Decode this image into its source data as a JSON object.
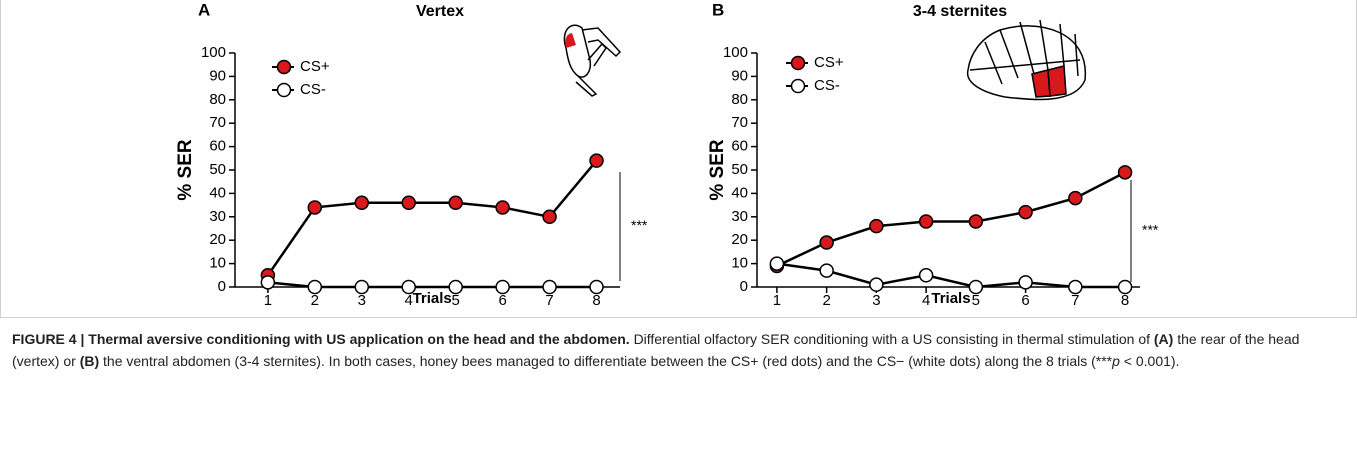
{
  "chart_data": [
    {
      "type": "line",
      "panel": "A",
      "title": "Vertex",
      "ylabel": "% SER",
      "xlabel": "Trials",
      "annotation": "***",
      "x": [
        1,
        2,
        3,
        4,
        5,
        6,
        7,
        8
      ],
      "xlim": [
        0.3,
        8.5
      ],
      "xticks": [
        1,
        2,
        3,
        4,
        5,
        6,
        7,
        8
      ],
      "ylim": [
        0,
        100
      ],
      "yticks": [
        0,
        10,
        20,
        30,
        40,
        50,
        60,
        70,
        80,
        90,
        100
      ],
      "legend": "upper left",
      "series": [
        {
          "name": "CS+",
          "color": "#d7191c",
          "values": [
            5,
            34,
            36,
            36,
            36,
            34,
            30,
            54
          ]
        },
        {
          "name": "CS-",
          "color": "#ffffff",
          "values": [
            2,
            0,
            0,
            0,
            0,
            0,
            0,
            0
          ]
        }
      ]
    },
    {
      "type": "line",
      "panel": "B",
      "title": "3-4 sternites",
      "ylabel": "% SER",
      "xlabel": "Trials",
      "annotation": "***",
      "x": [
        1,
        2,
        3,
        4,
        5,
        6,
        7,
        8
      ],
      "xlim": [
        0.6,
        8.3
      ],
      "xticks": [
        1,
        2,
        3,
        4,
        5,
        6,
        7,
        8
      ],
      "ylim": [
        0,
        100
      ],
      "yticks": [
        0,
        10,
        20,
        30,
        40,
        50,
        60,
        70,
        80,
        90,
        100
      ],
      "legend": "upper left",
      "series": [
        {
          "name": "CS+",
          "color": "#d7191c",
          "values": [
            9,
            19,
            26,
            28,
            28,
            32,
            38,
            49
          ]
        },
        {
          "name": "CS-",
          "color": "#ffffff",
          "values": [
            10,
            7,
            1,
            5,
            0,
            2,
            0,
            0
          ]
        }
      ]
    }
  ],
  "caption": {
    "title": "FIGURE 4 | Thermal aversive conditioning with US application on the head and the abdomen.",
    "body": [
      "Differential olfactory SER conditioning with a US consisting in thermal stimulation of ",
      "(A)",
      " the rear of the head (vertex) or ",
      "(B)",
      " the ventral abdomen (3-4 sternites). In both cases, honey bees managed to differentiate between the CS+ (red dots) and the CS− (white dots) along the 8 trials (***",
      "p",
      " < 0.001)."
    ]
  }
}
